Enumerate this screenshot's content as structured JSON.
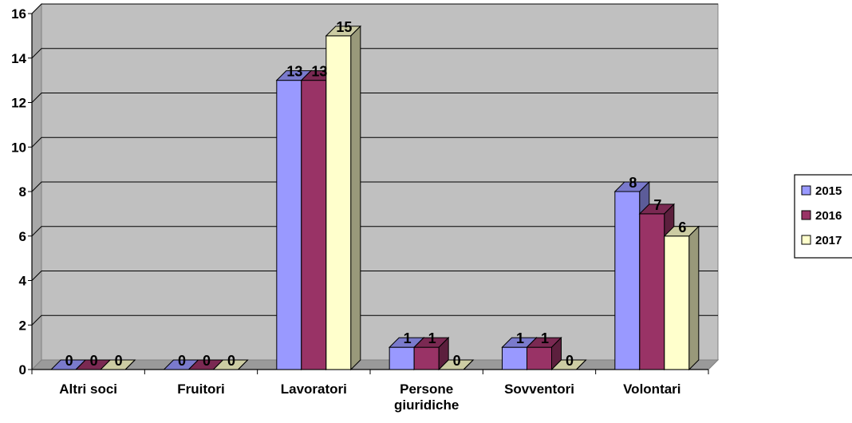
{
  "chart_data": {
    "type": "bar",
    "categories": [
      "Altri soci",
      "Fruitori",
      "Lavoratori",
      "Persone giuridiche",
      "Sovventori",
      "Volontari"
    ],
    "category_lines": [
      [
        "Altri soci"
      ],
      [
        "Fruitori"
      ],
      [
        "Lavoratori"
      ],
      [
        "Persone",
        "giuridiche"
      ],
      [
        "Sovventori"
      ],
      [
        "Volontari"
      ]
    ],
    "series": [
      {
        "name": "2015",
        "values": [
          0,
          0,
          13,
          1,
          1,
          8
        ],
        "color": "#9999ff"
      },
      {
        "name": "2016",
        "values": [
          0,
          0,
          13,
          1,
          1,
          7
        ],
        "color": "#993366"
      },
      {
        "name": "2017",
        "values": [
          0,
          0,
          15,
          0,
          0,
          6
        ],
        "color": "#ffffcc"
      }
    ],
    "ylim": [
      0,
      16
    ],
    "yticks": [
      "0",
      "2",
      "4",
      "6",
      "8",
      "10",
      "12",
      "14",
      "16"
    ],
    "grid": true,
    "legend_position": "right",
    "plot_background": "#c0c0c0"
  }
}
